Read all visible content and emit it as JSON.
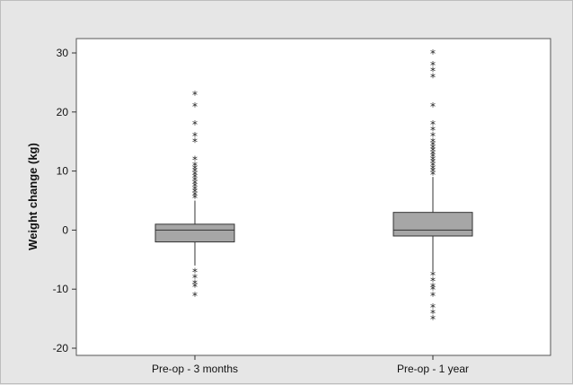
{
  "chart_data": {
    "type": "box",
    "title": "",
    "xlabel": "",
    "ylabel": "Weight change (kg)",
    "ylim": [
      -21,
      33
    ],
    "yticks": [
      -20,
      -10,
      0,
      10,
      20,
      30
    ],
    "grid": false,
    "box_fill": "#a6a6a6",
    "categories": [
      "Pre-op - 3 months",
      "Pre-op - 1 year"
    ],
    "boxes": [
      {
        "category": "Pre-op - 3 months",
        "q1": -2,
        "median": 0,
        "q3": 1,
        "whisker_low": -6,
        "whisker_high": 5,
        "outliers": [
          5.5,
          6,
          6.5,
          7,
          7.5,
          8,
          8.5,
          9,
          9.5,
          10,
          10.5,
          11,
          12,
          15,
          16,
          18,
          21,
          23,
          -7,
          -8,
          -9,
          -9.5,
          -11
        ]
      },
      {
        "category": "Pre-op - 1 year",
        "q1": -1,
        "median": 0,
        "q3": 3,
        "whisker_low": -7,
        "whisker_high": 9,
        "outliers": [
          9.5,
          10,
          10.5,
          11,
          11.5,
          12,
          12.5,
          13,
          13.5,
          14,
          14.5,
          15,
          16,
          17,
          18,
          21,
          26,
          27,
          28,
          30,
          -7.5,
          -8.5,
          -9.5,
          -10,
          -11,
          -13,
          -14,
          -15
        ]
      }
    ]
  }
}
